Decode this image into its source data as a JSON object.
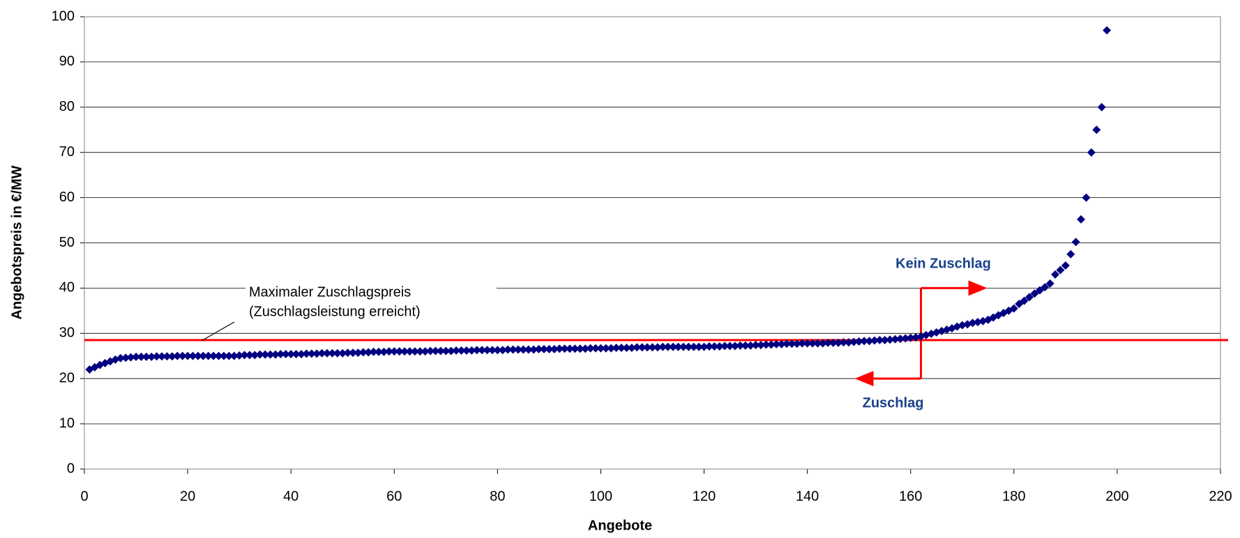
{
  "chart_data": {
    "type": "scatter",
    "x_label": "Angebote",
    "y_label": "Angebotspreis in €/MW",
    "xlim": [
      0,
      220
    ],
    "xticks": [
      0,
      20,
      40,
      60,
      80,
      100,
      120,
      140,
      160,
      180,
      200,
      220
    ],
    "ylim": [
      0,
      100
    ],
    "yticks": [
      0,
      10,
      20,
      30,
      40,
      50,
      60,
      70,
      80,
      90,
      100
    ],
    "grid": true,
    "color": "#000080",
    "x": [
      1,
      2,
      3,
      4,
      5,
      6,
      7,
      8,
      9,
      10,
      11,
      12,
      13,
      14,
      15,
      16,
      17,
      18,
      19,
      20,
      21,
      22,
      23,
      24,
      25,
      26,
      27,
      28,
      29,
      30,
      31,
      32,
      33,
      34,
      35,
      36,
      37,
      38,
      39,
      40,
      41,
      42,
      43,
      44,
      45,
      46,
      47,
      48,
      49,
      50,
      51,
      52,
      53,
      54,
      55,
      56,
      57,
      58,
      59,
      60,
      61,
      62,
      63,
      64,
      65,
      66,
      67,
      68,
      69,
      70,
      71,
      72,
      73,
      74,
      75,
      76,
      77,
      78,
      79,
      80,
      81,
      82,
      83,
      84,
      85,
      86,
      87,
      88,
      89,
      90,
      91,
      92,
      93,
      94,
      95,
      96,
      97,
      98,
      99,
      100,
      101,
      102,
      103,
      104,
      105,
      106,
      107,
      108,
      109,
      110,
      111,
      112,
      113,
      114,
      115,
      116,
      117,
      118,
      119,
      120,
      121,
      122,
      123,
      124,
      125,
      126,
      127,
      128,
      129,
      130,
      131,
      132,
      133,
      134,
      135,
      136,
      137,
      138,
      139,
      140,
      141,
      142,
      143,
      144,
      145,
      146,
      147,
      148,
      149,
      150,
      151,
      152,
      153,
      154,
      155,
      156,
      157,
      158,
      159,
      160,
      161,
      162,
      163,
      164,
      165,
      166,
      167,
      168,
      169,
      170,
      171,
      172,
      173,
      174,
      175,
      176,
      177,
      178,
      179,
      180,
      181,
      182,
      183,
      184,
      185,
      186,
      187,
      188,
      189,
      190,
      191,
      192,
      193,
      194,
      195,
      196,
      197,
      198
    ],
    "values": [
      22,
      22.5,
      23,
      23.4,
      23.8,
      24.2,
      24.5,
      24.6,
      24.7,
      24.8,
      24.8,
      24.8,
      24.8,
      24.9,
      24.9,
      24.9,
      24.9,
      25,
      25,
      25,
      25,
      25,
      25,
      25,
      25,
      25,
      25,
      25,
      25,
      25.1,
      25.2,
      25.2,
      25.2,
      25.3,
      25.3,
      25.3,
      25.3,
      25.4,
      25.4,
      25.4,
      25.4,
      25.4,
      25.5,
      25.5,
      25.5,
      25.6,
      25.6,
      25.6,
      25.6,
      25.6,
      25.7,
      25.7,
      25.7,
      25.8,
      25.8,
      25.9,
      25.9,
      25.9,
      26,
      26,
      26,
      26,
      26,
      26,
      26,
      26,
      26.1,
      26.1,
      26.1,
      26.1,
      26.1,
      26.2,
      26.2,
      26.2,
      26.2,
      26.3,
      26.3,
      26.3,
      26.3,
      26.3,
      26.3,
      26.4,
      26.4,
      26.4,
      26.4,
      26.4,
      26.4,
      26.5,
      26.5,
      26.5,
      26.5,
      26.6,
      26.6,
      26.6,
      26.6,
      26.6,
      26.6,
      26.7,
      26.7,
      26.7,
      26.7,
      26.7,
      26.8,
      26.8,
      26.8,
      26.8,
      26.9,
      26.9,
      26.9,
      26.9,
      26.9,
      27,
      27,
      27,
      27,
      27,
      27,
      27,
      27,
      27,
      27.1,
      27.1,
      27.1,
      27.2,
      27.2,
      27.2,
      27.3,
      27.3,
      27.3,
      27.4,
      27.4,
      27.5,
      27.5,
      27.6,
      27.6,
      27.7,
      27.7,
      27.7,
      27.8,
      27.8,
      27.8,
      27.8,
      27.8,
      27.9,
      27.9,
      27.9,
      28,
      28,
      28.1,
      28.2,
      28.3,
      28.3,
      28.4,
      28.5,
      28.5,
      28.6,
      28.7,
      28.8,
      28.9,
      29,
      29.1,
      29.3,
      29.6,
      29.9,
      30.2,
      30.5,
      30.8,
      31.1,
      31.5,
      31.8,
      32,
      32.3,
      32.5,
      32.7,
      33,
      33.5,
      34,
      34.5,
      35,
      35.5,
      36.5,
      37.2,
      38,
      38.8,
      39.5,
      40.2,
      41,
      43,
      44,
      45,
      47.5,
      50.2,
      55.2,
      60,
      70,
      75,
      80,
      97
    ],
    "threshold": {
      "value": 28.5,
      "color": "#ff0000",
      "label": [
        "Maximaler Zuschlagspreis",
        "(Zuschlagsleistung erreicht)"
      ]
    },
    "split": {
      "x": 162,
      "upper": 40,
      "lower": 20,
      "upper_label": "Kein Zuschlag",
      "lower_label": "Zuschlag",
      "color": "#ff0000",
      "label_color": "#17408b"
    }
  }
}
